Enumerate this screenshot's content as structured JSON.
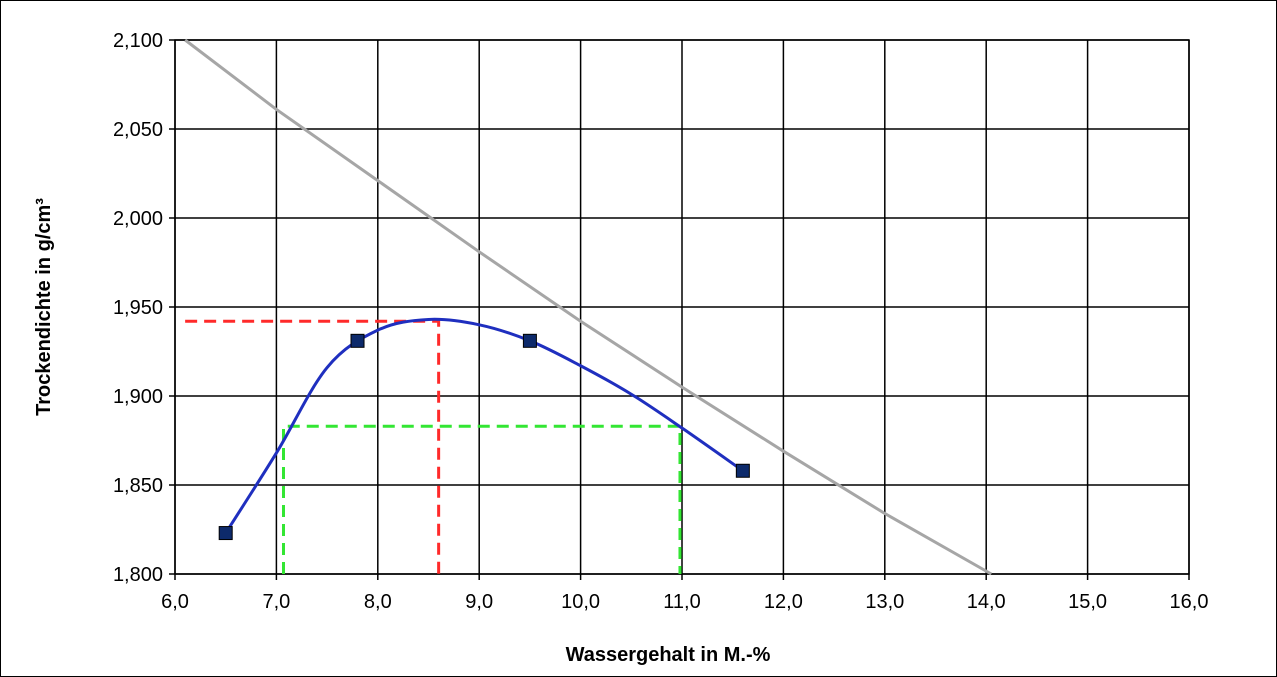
{
  "chart_data": {
    "type": "scatter",
    "title": "",
    "xlabel": "Wassergehalt in M.-%",
    "ylabel": "Trockendichte  in g/cm³",
    "xlim": [
      6.0,
      16.0
    ],
    "ylim": [
      1.8,
      2.1
    ],
    "x_ticks": [
      "6,0",
      "7,0",
      "8,0",
      "9,0",
      "10,0",
      "11,0",
      "12,0",
      "13,0",
      "14,0",
      "15,0",
      "16,0"
    ],
    "y_ticks": [
      "1,800",
      "1,850",
      "1,900",
      "1,950",
      "2,000",
      "2,050",
      "2,100"
    ],
    "grid": true,
    "legend": "none",
    "series": [
      {
        "role": "measurements",
        "kind": "markers",
        "color": "#0d2a6b",
        "points": [
          [
            6.5,
            1.823
          ],
          [
            7.8,
            1.931
          ],
          [
            9.5,
            1.931
          ],
          [
            11.6,
            1.858
          ]
        ]
      },
      {
        "role": "proctor-curve",
        "kind": "smooth-line",
        "color": "#1f2fbf",
        "points": [
          [
            6.5,
            1.823
          ],
          [
            7.0,
            1.868
          ],
          [
            7.5,
            1.916
          ],
          [
            8.0,
            1.937
          ],
          [
            8.5,
            1.943
          ],
          [
            9.0,
            1.94
          ],
          [
            9.5,
            1.931
          ],
          [
            10.0,
            1.917
          ],
          [
            10.5,
            1.901
          ],
          [
            11.0,
            1.882
          ],
          [
            11.6,
            1.858
          ]
        ]
      },
      {
        "role": "saturation-line",
        "kind": "line",
        "color": "#a6a6a6",
        "points": [
          [
            6.1,
            2.1
          ],
          [
            7.0,
            2.061
          ],
          [
            8.0,
            2.021
          ],
          [
            9.0,
            1.981
          ],
          [
            10.0,
            1.942
          ],
          [
            11.0,
            1.905
          ],
          [
            12.0,
            1.869
          ],
          [
            13.0,
            1.834
          ],
          [
            14.05,
            1.8
          ]
        ]
      },
      {
        "role": "optimum-marker",
        "kind": "dashed-polyline",
        "color": "#ff2a2a",
        "points": [
          [
            6.1,
            1.942
          ],
          [
            8.6,
            1.942
          ],
          [
            8.6,
            1.8
          ]
        ]
      },
      {
        "role": "range-marker",
        "kind": "dashed-polyline",
        "color": "#33e633",
        "points": [
          [
            7.07,
            1.8
          ],
          [
            7.07,
            1.883
          ],
          [
            10.98,
            1.883
          ],
          [
            10.98,
            1.8
          ]
        ]
      }
    ]
  }
}
